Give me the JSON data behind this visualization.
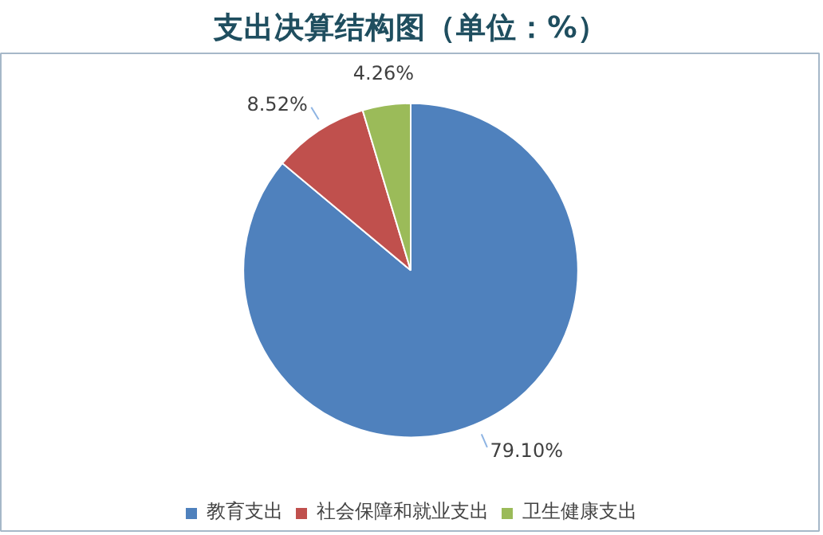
{
  "chart_data": {
    "type": "pie",
    "title": "支出决算结构图（单位：%）",
    "categories": [
      "教育支出",
      "社会保障和就业支出",
      "卫生健康支出"
    ],
    "values": [
      79.1,
      8.52,
      4.26
    ],
    "colors": [
      "#4f81bd",
      "#c0504d",
      "#9bbb59"
    ],
    "value_labels": [
      "79.10%",
      "8.52%",
      "4.26%"
    ],
    "legend": "bottom"
  }
}
